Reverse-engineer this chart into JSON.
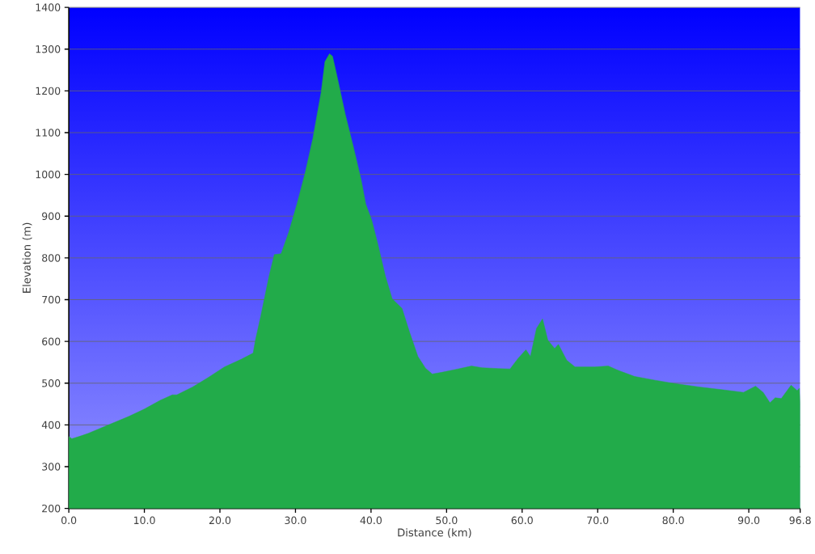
{
  "chart_data": {
    "type": "area",
    "xlabel": "Distance  (km)",
    "ylabel": "Elevation (m)",
    "x": [
      0,
      0.4,
      1.5,
      2.6,
      4.7,
      7.9,
      10,
      12.1,
      13.7,
      14.3,
      16.4,
      18.5,
      20.6,
      22.8,
      24.4,
      24.7,
      25.4,
      26.5,
      27.2,
      28.1,
      29.1,
      30.2,
      31.3,
      32.3,
      33.4,
      33.9,
      34.5,
      34.9,
      35.5,
      36.6,
      37.7,
      38.7,
      39.3,
      40.1,
      40.9,
      41.9,
      42.8,
      44.1,
      45.1,
      46.2,
      47.2,
      48.1,
      49.4,
      51.5,
      53.3,
      54.7,
      56.8,
      58.4,
      59.5,
      60.5,
      61.1,
      61.9,
      62.7,
      63.4,
      64.3,
      64.8,
      65.9,
      67.0,
      69.6,
      71.4,
      72.8,
      74.9,
      77.6,
      80.2,
      83.4,
      86.6,
      89.3,
      90.9,
      91.9,
      92.8,
      93.5,
      94.3,
      95.6,
      96.4,
      96.7,
      96.8
    ],
    "series": [
      {
        "color": "#22ab4a",
        "values": [
          372,
          367,
          373,
          380,
          396,
          420,
          438,
          459,
          472,
          472,
          491,
          514,
          539,
          557,
          572,
          603,
          660,
          756,
          808,
          810,
          861,
          929,
          1005,
          1086,
          1197,
          1270,
          1289,
          1283,
          1235,
          1143,
          1063,
          986,
          929,
          890,
          833,
          756,
          702,
          679,
          622,
          564,
          536,
          522,
          526,
          534,
          541,
          537,
          535,
          534,
          560,
          580,
          564,
          631,
          654,
          603,
          583,
          593,
          555,
          539,
          539,
          541,
          530,
          516,
          507,
          499,
          491,
          484,
          478,
          493,
          478,
          453,
          465,
          463,
          495,
          482,
          488,
          449
        ]
      }
    ],
    "xlim": [
      0,
      96.8
    ],
    "ylim": [
      200,
      1400
    ],
    "xticks": [
      {
        "value": 0,
        "label": "0.0"
      },
      {
        "value": 10,
        "label": "10.0"
      },
      {
        "value": 20,
        "label": "20.0"
      },
      {
        "value": 30,
        "label": "30.0"
      },
      {
        "value": 40,
        "label": "40.0"
      },
      {
        "value": 50,
        "label": "50.0"
      },
      {
        "value": 60,
        "label": "60.0"
      },
      {
        "value": 70,
        "label": "70.0"
      },
      {
        "value": 80,
        "label": "80.0"
      },
      {
        "value": 90,
        "label": "90.0"
      },
      {
        "value": 96.8,
        "label": "96.8"
      }
    ],
    "yticks": [
      200,
      300,
      400,
      500,
      600,
      700,
      800,
      900,
      1000,
      1100,
      1200,
      1300,
      1400
    ],
    "grid": "y"
  }
}
